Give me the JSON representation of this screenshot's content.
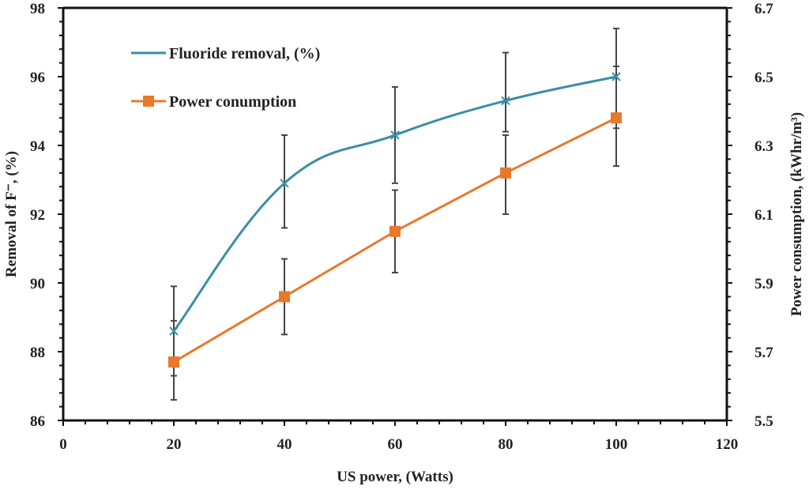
{
  "chart_data": {
    "type": "line",
    "title": "",
    "xlabel": "US power, (Watts)",
    "ylabel": "Removal of F⁻, (%)",
    "y2label": "Power consumption, (kWhr/m³)",
    "xlim": [
      0,
      120
    ],
    "ylim": [
      86,
      98
    ],
    "y2lim": [
      5.5,
      6.7
    ],
    "xticks": [
      "0",
      "20",
      "40",
      "60",
      "80",
      "100",
      "120"
    ],
    "yticks": [
      "86",
      "88",
      "90",
      "92",
      "94",
      "96",
      "98"
    ],
    "y2ticks": [
      "5.5",
      "5.7",
      "5.9",
      "6.1",
      "6.3",
      "6.5",
      "6.7"
    ],
    "grid": false,
    "legend_position": "top-left",
    "x": [
      20,
      40,
      60,
      80,
      100
    ],
    "series": [
      {
        "name": "Fluoride removal, (%)",
        "axis": "left",
        "color": "#3a8ea5",
        "marker": "x",
        "smooth": true,
        "values": [
          88.6,
          92.9,
          94.3,
          95.3,
          96.0
        ],
        "error_low": [
          87.3,
          91.6,
          92.9,
          94.4,
          94.5
        ],
        "error_high": [
          89.9,
          94.3,
          95.7,
          96.7,
          97.4
        ]
      },
      {
        "name": "Power conumption",
        "axis": "right",
        "color": "#e8782a",
        "marker": "square",
        "smooth": false,
        "values": [
          5.67,
          5.86,
          6.05,
          6.22,
          6.38
        ],
        "error_low": [
          5.56,
          5.75,
          5.93,
          6.1,
          6.24
        ],
        "error_high": [
          5.79,
          5.97,
          6.17,
          6.33,
          6.53
        ]
      }
    ],
    "errorbar_color": "#444444"
  }
}
